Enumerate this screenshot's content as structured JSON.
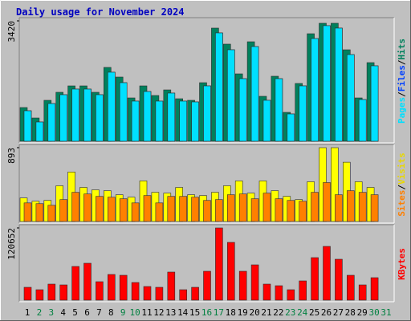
{
  "chart_data": {
    "type": "bar",
    "title": "Daily usage for November 2024",
    "categories": [
      "1",
      "2",
      "3",
      "4",
      "5",
      "6",
      "7",
      "8",
      "9",
      "10",
      "11",
      "12",
      "13",
      "14",
      "15",
      "16",
      "17",
      "18",
      "19",
      "20",
      "21",
      "22",
      "23",
      "24",
      "25",
      "26",
      "27",
      "28",
      "29",
      "30",
      "31"
    ],
    "category_colors": [
      "#000000",
      "#008040",
      "#008040",
      "#000000",
      "#000000",
      "#000000",
      "#000000",
      "#000000",
      "#008040",
      "#008040",
      "#000000",
      "#000000",
      "#000000",
      "#000000",
      "#000000",
      "#008040",
      "#008040",
      "#000000",
      "#000000",
      "#000000",
      "#000000",
      "#000000",
      "#008040",
      "#008040",
      "#000000",
      "#000000",
      "#000000",
      "#000000",
      "#000000",
      "#008040",
      "#008040"
    ],
    "legend_separator": "/",
    "panels": [
      {
        "ylim": [
          0,
          3420
        ],
        "yticks": [
          3420
        ],
        "series": [
          {
            "name": "Hits",
            "color": "#00805c",
            "values": [
              958,
              661,
              1163,
              1391,
              1573,
              1573,
              1391,
              2098,
              1824,
              1231,
              1573,
              1300,
              1459,
              1208,
              1163,
              1664,
              3215,
              2759,
              1915,
              2827,
              1277,
              1847,
              821,
              1642,
              3055,
              3352,
              3352,
              2599,
              1231,
              2234,
              null
            ]
          },
          {
            "name": "Files",
            "color": "#0040ff",
            "values": [
              866,
              547,
              1071,
              1322,
              1482,
              1482,
              1322,
              1961,
              1664,
              1140,
              1413,
              1140,
              1368,
              1140,
              1117,
              1573,
              3078,
              2599,
              1778,
              2690,
              1163,
              1778,
              775,
              1573,
              2918,
              3284,
              3215,
              2462,
              1185,
              2143,
              null
            ]
          },
          {
            "name": "Pages",
            "color": "#00e0ff",
            "values": [
              866,
              547,
              1071,
              1322,
              1482,
              1482,
              1322,
              1961,
              1664,
              1140,
              1413,
              1140,
              1368,
              1140,
              1117,
              1573,
              3078,
              2599,
              1778,
              2690,
              1163,
              1778,
              775,
              1573,
              2918,
              3284,
              3215,
              2462,
              1185,
              2143,
              null
            ]
          }
        ]
      },
      {
        "ylim": [
          0,
          893
        ],
        "yticks": [
          893
        ],
        "series": [
          {
            "name": "Visits",
            "color": "#ffff00",
            "values": [
              285,
              245,
              255,
              432,
              599,
              412,
              383,
              373,
              324,
              294,
              491,
              353,
              343,
              412,
              324,
              314,
              353,
              432,
              491,
              343,
              491,
              373,
              304,
              265,
              481,
              893,
              893,
              717,
              481,
              412,
              null
            ]
          },
          {
            "name": "Sites",
            "color": "#ff8000",
            "values": [
              225,
              216,
              196,
              265,
              353,
              333,
              304,
              294,
              275,
              225,
              314,
              225,
              304,
              304,
              294,
              255,
              265,
              324,
              333,
              275,
              343,
              275,
              255,
              245,
              353,
              471,
              324,
              373,
              353,
              324,
              null
            ]
          }
        ]
      },
      {
        "ylim": [
          0,
          120652
        ],
        "yticks": [
          120652
        ],
        "series": [
          {
            "name": "KBytes",
            "color": "#ff0000",
            "values": [
              21450,
              17420,
              26800,
              25460,
              56290,
              61650,
              30820,
              42890,
              41540,
              29480,
              22780,
              21450,
              46900,
              17420,
              21450,
              48250,
              120652,
              96500,
              48250,
              58970,
              26800,
              24120,
              17420,
              32160,
              71030,
              89800,
              68350,
              41550,
              25460,
              37530,
              null
            ]
          }
        ]
      }
    ]
  }
}
